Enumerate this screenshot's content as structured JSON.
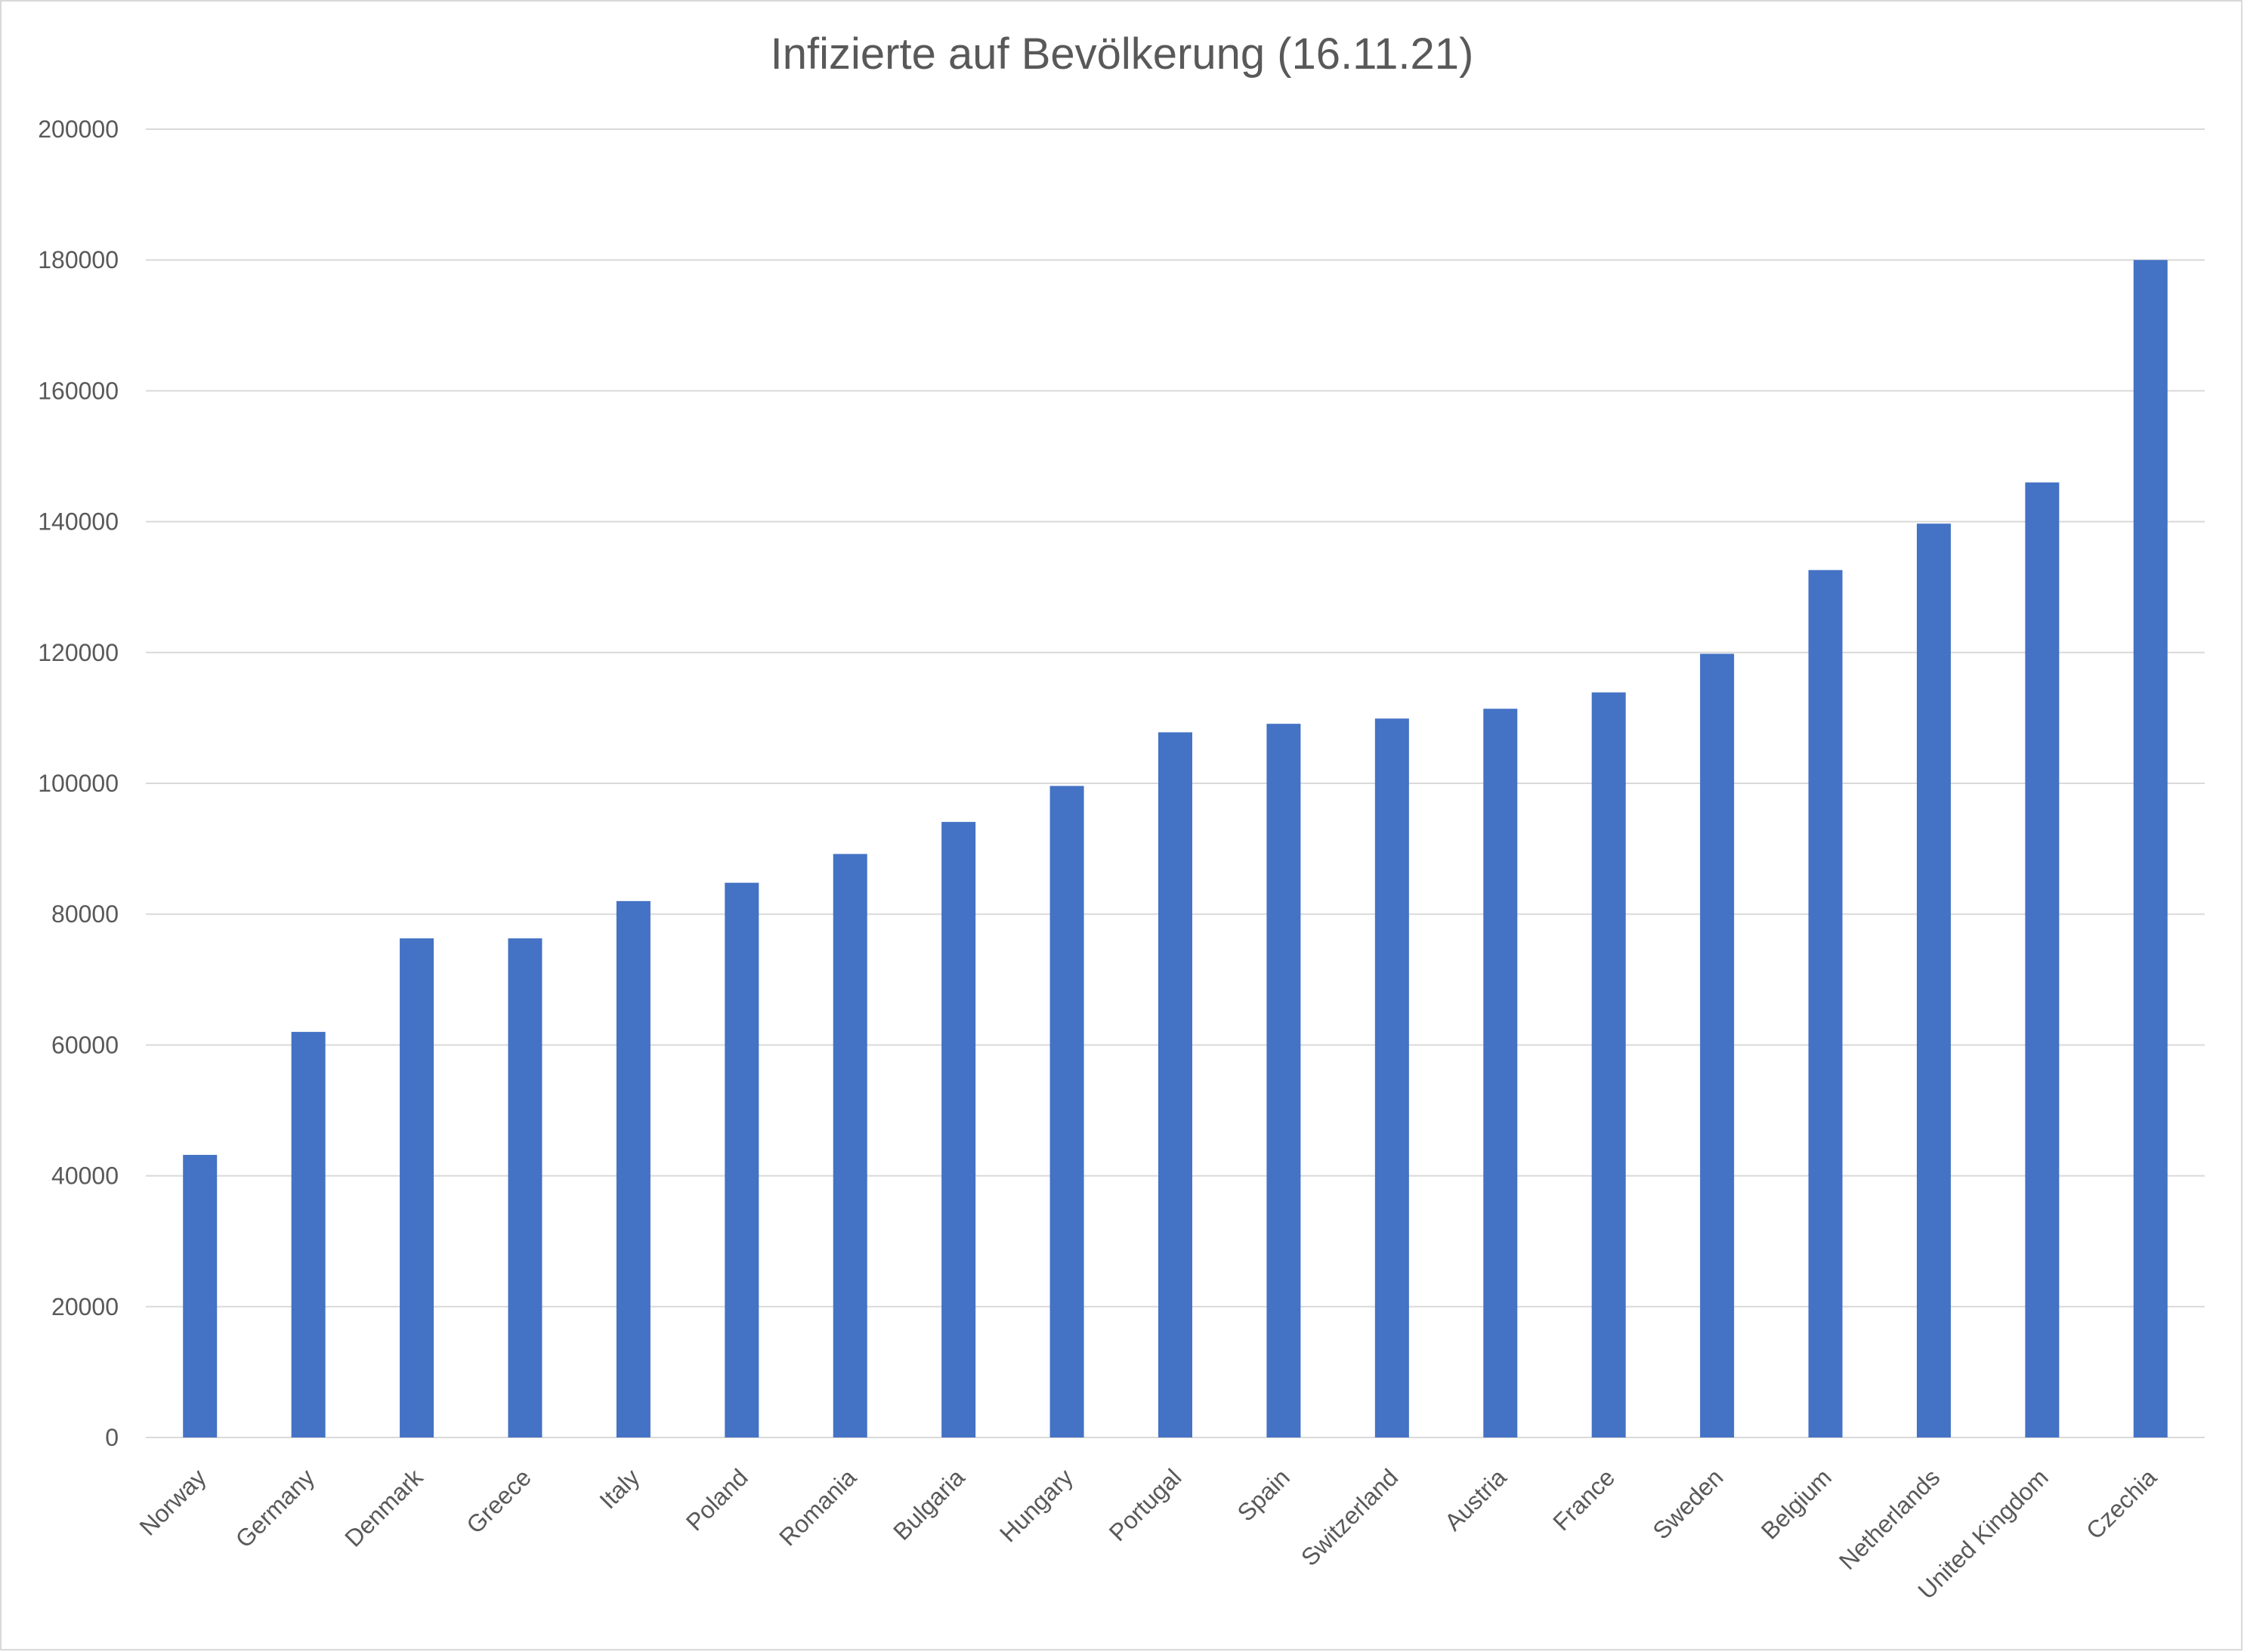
{
  "chart_data": {
    "type": "bar",
    "title": "Infizierte auf Bevölkerung (16.11.21)",
    "xlabel": "",
    "ylabel": "",
    "ylim": [
      0,
      200000
    ],
    "yticks": [
      0,
      20000,
      40000,
      60000,
      80000,
      100000,
      120000,
      140000,
      160000,
      180000,
      200000
    ],
    "categories": [
      "Norway",
      "Germany",
      "Denmark",
      "Greece",
      "Italy",
      "Poland",
      "Romania",
      "Bulgaria",
      "Hungary",
      "Portugal",
      "Spain",
      "Switzerland",
      "Austria",
      "France",
      "Sweden",
      "Belgium",
      "Netherlands",
      "United Kingdom",
      "Czechia"
    ],
    "values": [
      43200,
      62000,
      76300,
      76300,
      82000,
      84800,
      89200,
      94100,
      99600,
      107800,
      109100,
      109900,
      111400,
      113900,
      119800,
      132600,
      139700,
      146000,
      180000
    ],
    "bar_color": "#4472c4",
    "grid": true,
    "grid_color": "#d9d9d9",
    "legend": false
  }
}
